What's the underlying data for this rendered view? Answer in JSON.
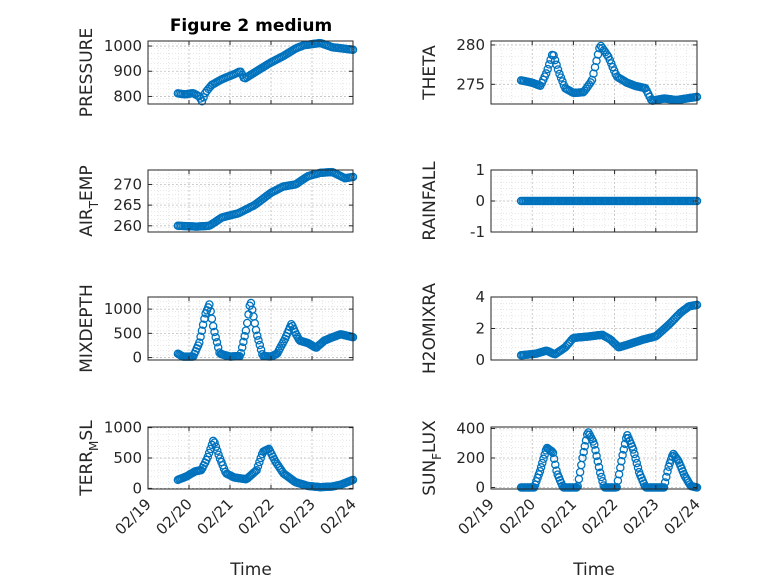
{
  "title": "Figure 2 medium",
  "xlabel": "Time",
  "x_ticks": [
    "02/19",
    "02/20",
    "02/21",
    "02/22",
    "02/23",
    "02/24"
  ],
  "colors": {
    "marker": "#0072BD",
    "grid": "#d9d9d9",
    "axis": "#262626"
  },
  "chart_data": [
    {
      "type": "scatter",
      "ylabel": {
        "main": "PRESSURE",
        "sub": "",
        "tail": ""
      },
      "xlim": [
        "02/19",
        "02/24"
      ],
      "ylim": [
        770,
        1020
      ],
      "yticks": [
        800,
        900,
        1000
      ],
      "x_range": [
        0.73,
        5.0
      ],
      "knots": [
        [
          0.73,
          812
        ],
        [
          0.9,
          808
        ],
        [
          1.1,
          813
        ],
        [
          1.25,
          800
        ],
        [
          1.32,
          780
        ],
        [
          1.4,
          815
        ],
        [
          1.55,
          845
        ],
        [
          1.8,
          868
        ],
        [
          2.1,
          888
        ],
        [
          2.25,
          900
        ],
        [
          2.35,
          870
        ],
        [
          2.6,
          895
        ],
        [
          3.0,
          935
        ],
        [
          3.3,
          960
        ],
        [
          3.6,
          990
        ],
        [
          3.8,
          1003
        ],
        [
          4.2,
          1012
        ],
        [
          4.5,
          995
        ],
        [
          5.0,
          985
        ]
      ],
      "n": 110
    },
    {
      "type": "scatter",
      "ylabel": {
        "main": "THETA",
        "sub": "",
        "tail": ""
      },
      "xlim": [
        "02/19",
        "02/24"
      ],
      "ylim": [
        272.5,
        280.5
      ],
      "yticks": [
        275,
        280
      ],
      "x_range": [
        0.73,
        5.0
      ],
      "knots": [
        [
          0.73,
          275.5
        ],
        [
          1.0,
          275.2
        ],
        [
          1.2,
          274.8
        ],
        [
          1.35,
          276.5
        ],
        [
          1.5,
          279.0
        ],
        [
          1.65,
          276.5
        ],
        [
          1.8,
          274.5
        ],
        [
          2.0,
          273.9
        ],
        [
          2.25,
          274.0
        ],
        [
          2.45,
          275.5
        ],
        [
          2.65,
          280.0
        ],
        [
          2.85,
          278.5
        ],
        [
          3.05,
          276.0
        ],
        [
          3.3,
          275.2
        ],
        [
          3.5,
          274.8
        ],
        [
          3.75,
          274.5
        ],
        [
          3.9,
          272.9
        ],
        [
          4.2,
          273.2
        ],
        [
          4.5,
          273.0
        ],
        [
          5.0,
          273.4
        ]
      ],
      "n": 120
    },
    {
      "type": "scatter",
      "ylabel": {
        "main": "AIR",
        "sub": "T",
        "tail": "EMP"
      },
      "xlim": [
        "02/19",
        "02/24"
      ],
      "ylim": [
        258.5,
        273.5
      ],
      "yticks": [
        260,
        265,
        270
      ],
      "x_range": [
        0.73,
        5.0
      ],
      "knots": [
        [
          0.73,
          260.0
        ],
        [
          1.2,
          259.8
        ],
        [
          1.5,
          260.0
        ],
        [
          1.8,
          262.0
        ],
        [
          2.2,
          263.0
        ],
        [
          2.6,
          265.0
        ],
        [
          3.0,
          268.0
        ],
        [
          3.3,
          269.5
        ],
        [
          3.6,
          270.0
        ],
        [
          3.9,
          272.0
        ],
        [
          4.2,
          272.8
        ],
        [
          4.5,
          273.0
        ],
        [
          4.8,
          271.5
        ],
        [
          5.0,
          271.8
        ]
      ],
      "n": 110
    },
    {
      "type": "scatter",
      "ylabel": {
        "main": "RAINFALL",
        "sub": "",
        "tail": ""
      },
      "xlim": [
        "02/19",
        "02/24"
      ],
      "ylim": [
        -1,
        1
      ],
      "yticks": [
        -1,
        0,
        1
      ],
      "x_range": [
        0.73,
        5.0
      ],
      "knots": [
        [
          0.73,
          0
        ],
        [
          5.0,
          0
        ]
      ],
      "n": 110
    },
    {
      "type": "scatter",
      "ylabel": {
        "main": "MIXDEPTH",
        "sub": "",
        "tail": ""
      },
      "xlim": [
        "02/19",
        "02/24"
      ],
      "ylim": [
        -50,
        1250
      ],
      "yticks": [
        0,
        500,
        1000
      ],
      "x_range": [
        0.73,
        5.0
      ],
      "knots": [
        [
          0.73,
          80
        ],
        [
          0.85,
          20
        ],
        [
          1.1,
          20
        ],
        [
          1.25,
          300
        ],
        [
          1.4,
          900
        ],
        [
          1.5,
          1100
        ],
        [
          1.6,
          600
        ],
        [
          1.75,
          80
        ],
        [
          2.0,
          20
        ],
        [
          2.25,
          30
        ],
        [
          2.4,
          600
        ],
        [
          2.5,
          1180
        ],
        [
          2.65,
          500
        ],
        [
          2.8,
          30
        ],
        [
          3.0,
          20
        ],
        [
          3.15,
          80
        ],
        [
          3.35,
          400
        ],
        [
          3.5,
          700
        ],
        [
          3.6,
          500
        ],
        [
          3.7,
          350
        ],
        [
          3.9,
          300
        ],
        [
          4.1,
          200
        ],
        [
          4.3,
          350
        ],
        [
          4.5,
          420
        ],
        [
          4.7,
          480
        ],
        [
          5.0,
          420
        ]
      ],
      "n": 140
    },
    {
      "type": "scatter",
      "ylabel": {
        "main": "H2OMIXRA",
        "sub": "",
        "tail": ""
      },
      "xlim": [
        "02/19",
        "02/24"
      ],
      "ylim": [
        0,
        4
      ],
      "yticks": [
        0,
        2,
        4
      ],
      "x_range": [
        0.73,
        5.0
      ],
      "knots": [
        [
          0.73,
          0.3
        ],
        [
          1.1,
          0.4
        ],
        [
          1.35,
          0.6
        ],
        [
          1.55,
          0.35
        ],
        [
          1.8,
          0.8
        ],
        [
          2.0,
          1.4
        ],
        [
          2.4,
          1.5
        ],
        [
          2.7,
          1.6
        ],
        [
          2.9,
          1.3
        ],
        [
          3.1,
          0.8
        ],
        [
          3.35,
          1.0
        ],
        [
          3.7,
          1.3
        ],
        [
          4.0,
          1.5
        ],
        [
          4.3,
          2.2
        ],
        [
          4.6,
          3.0
        ],
        [
          4.8,
          3.4
        ],
        [
          5.0,
          3.5
        ]
      ],
      "n": 120
    },
    {
      "type": "scatter",
      "ylabel": {
        "main": "TERR",
        "sub": "M",
        "tail": "SL"
      },
      "xlim": [
        "02/19",
        "02/24"
      ],
      "ylim": [
        -10,
        1010
      ],
      "yticks": [
        0,
        500,
        1000
      ],
      "x_range": [
        0.73,
        5.0
      ],
      "knots": [
        [
          0.73,
          140
        ],
        [
          0.95,
          200
        ],
        [
          1.15,
          280
        ],
        [
          1.3,
          300
        ],
        [
          1.45,
          500
        ],
        [
          1.6,
          800
        ],
        [
          1.75,
          500
        ],
        [
          1.9,
          250
        ],
        [
          2.1,
          180
        ],
        [
          2.4,
          150
        ],
        [
          2.65,
          300
        ],
        [
          2.8,
          600
        ],
        [
          2.95,
          650
        ],
        [
          3.1,
          450
        ],
        [
          3.3,
          250
        ],
        [
          3.6,
          100
        ],
        [
          3.9,
          40
        ],
        [
          4.2,
          20
        ],
        [
          4.5,
          30
        ],
        [
          4.7,
          60
        ],
        [
          5.0,
          140
        ]
      ],
      "n": 130
    },
    {
      "type": "scatter",
      "ylabel": {
        "main": "SUN",
        "sub": "F",
        "tail": "LUX"
      },
      "xlim": [
        "02/19",
        "02/24"
      ],
      "ylim": [
        -10,
        410
      ],
      "yticks": [
        0,
        200,
        400
      ],
      "x_range": [
        0.73,
        5.0
      ],
      "knots": [
        [
          0.73,
          0
        ],
        [
          1.05,
          0
        ],
        [
          1.2,
          120
        ],
        [
          1.35,
          270
        ],
        [
          1.5,
          240
        ],
        [
          1.6,
          100
        ],
        [
          1.75,
          0
        ],
        [
          2.1,
          0
        ],
        [
          2.22,
          200
        ],
        [
          2.35,
          380
        ],
        [
          2.5,
          300
        ],
        [
          2.65,
          100
        ],
        [
          2.75,
          0
        ],
        [
          3.05,
          0
        ],
        [
          3.18,
          200
        ],
        [
          3.3,
          360
        ],
        [
          3.45,
          260
        ],
        [
          3.6,
          100
        ],
        [
          3.75,
          0
        ],
        [
          4.2,
          0
        ],
        [
          4.3,
          130
        ],
        [
          4.42,
          230
        ],
        [
          4.55,
          180
        ],
        [
          4.7,
          80
        ],
        [
          4.85,
          10
        ],
        [
          5.0,
          0
        ]
      ],
      "n": 150
    }
  ]
}
